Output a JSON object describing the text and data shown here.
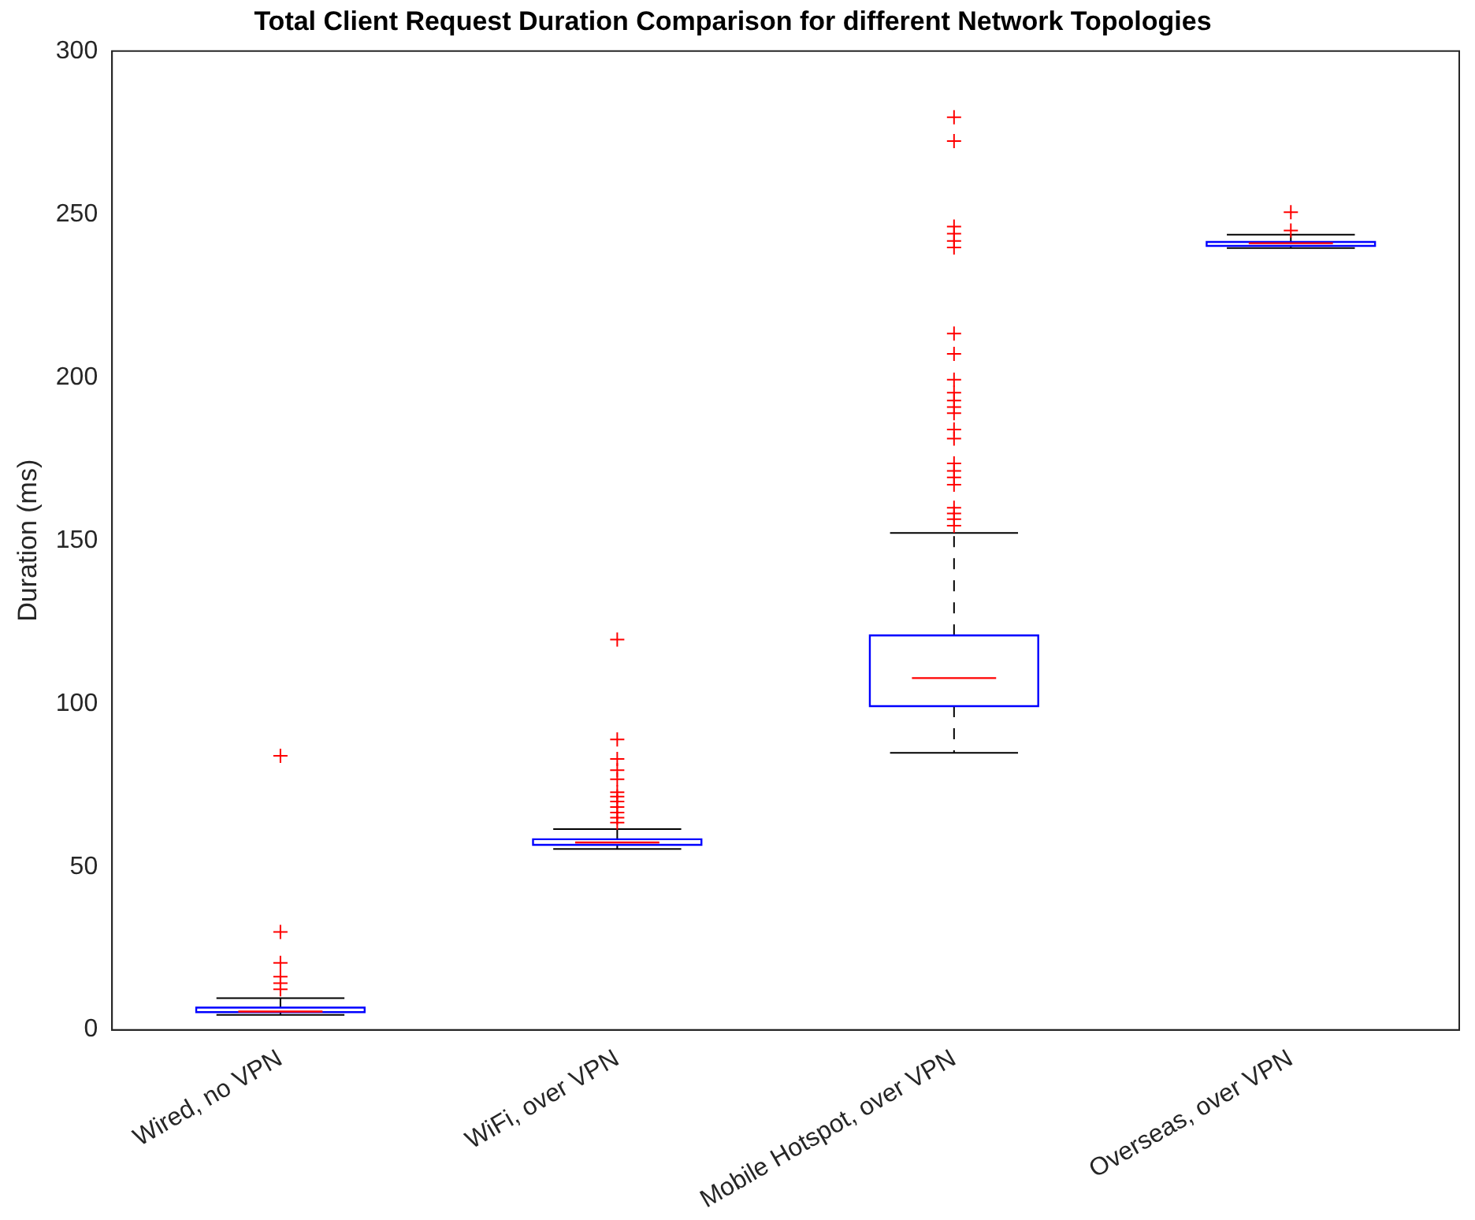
{
  "chart_data": {
    "type": "box",
    "title": "Total Client Request Duration Comparison for different Network Topologies",
    "ylabel": "Duration (ms)",
    "categories": [
      "Wired, no VPN",
      "WiFi, over VPN",
      "Mobile Hotspot, over VPN",
      "Overseas, over VPN"
    ],
    "ylim": [
      0,
      300
    ],
    "yticks": [
      0,
      50,
      100,
      150,
      200,
      250,
      300
    ],
    "grid": false,
    "legend": false,
    "marker": "cross",
    "series": [
      {
        "color": "#0000ff",
        "boxes": [
          {
            "low": 4.6,
            "q1": 5.4,
            "median": 5.6,
            "q3": 6.8,
            "high": 9.7,
            "outliers": [
              84,
              30,
              20.5,
              16.3,
              14.3,
              12.4
            ]
          },
          {
            "low": 55.4,
            "q1": 56.7,
            "median": 57.4,
            "q3": 58.4,
            "high": 61.5,
            "outliers": [
              119.6,
              89,
              83,
              79.6,
              76.8,
              72.8,
              71.5,
              70,
              68.3,
              66.6,
              65,
              63.5
            ]
          },
          {
            "low": 84.9,
            "q1": 99.2,
            "median": 107.8,
            "q3": 120.9,
            "high": 152.3,
            "outliers": [
              279.7,
              272.4,
              246.2,
              244,
              241.8,
              239.8,
              213.4,
              207.2,
              199.3,
              195.3,
              192.9,
              190.9,
              189,
              184,
              181.2,
              173.6,
              171.3,
              169.3,
              167.1,
              160,
              158.3,
              156.5,
              154.5
            ]
          },
          {
            "low": 239.6,
            "q1": 240.3,
            "median": 241.1,
            "q3": 241.5,
            "high": 243.7,
            "outliers": [
              250.6,
              245
            ]
          }
        ]
      }
    ]
  }
}
